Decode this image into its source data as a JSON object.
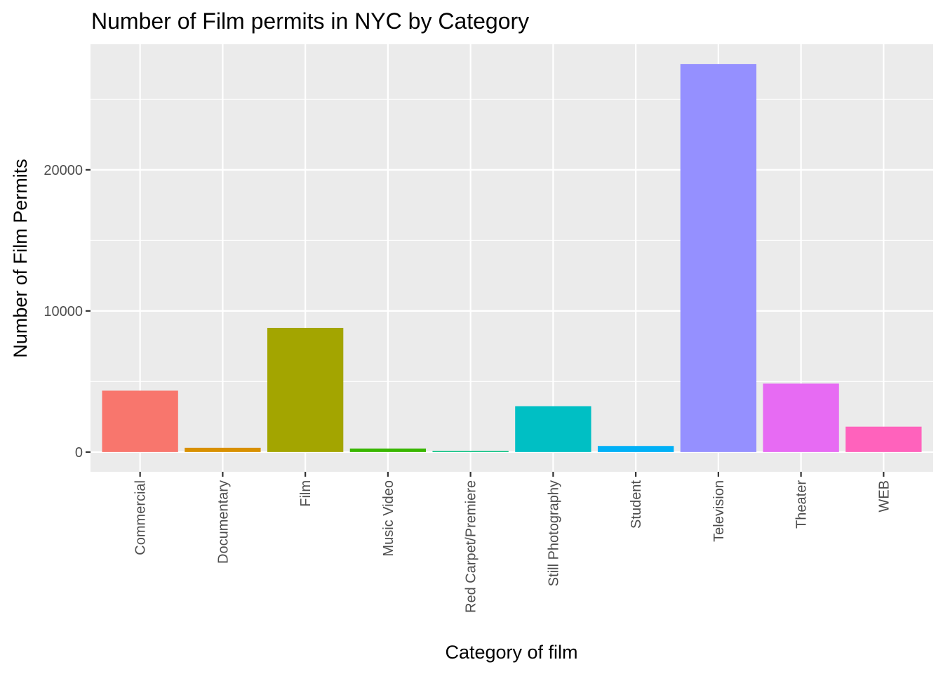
{
  "chart_data": {
    "type": "bar",
    "title": "Number of Film permits in NYC by Category",
    "xlabel": "Category of film",
    "ylabel": "Number of Film Permits",
    "categories": [
      "Commercial",
      "Documentary",
      "Film",
      "Music Video",
      "Red Carpet/Premiere",
      "Still Photography",
      "Student",
      "Television",
      "Theater",
      "WEB"
    ],
    "values": [
      4350,
      300,
      8800,
      250,
      80,
      3250,
      430,
      27500,
      4850,
      1800
    ],
    "colors": [
      "#F8766D",
      "#D89000",
      "#A3A500",
      "#39B600",
      "#00BF7D",
      "#00BFC4",
      "#00B0F6",
      "#9590FF",
      "#E76BF3",
      "#FF62BC"
    ],
    "yticks": [
      0,
      10000,
      20000
    ],
    "ylim": [
      -1400,
      28900
    ],
    "grid": true,
    "legend": "none"
  }
}
